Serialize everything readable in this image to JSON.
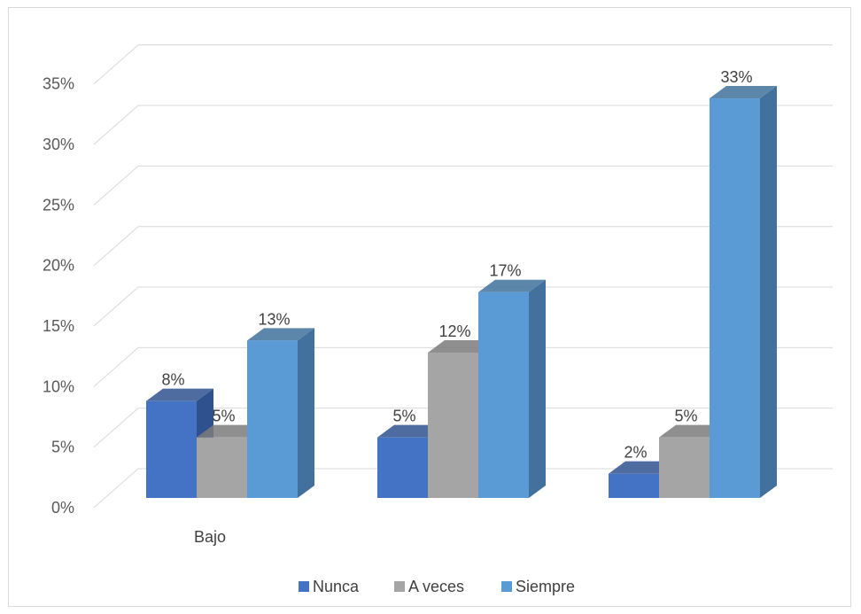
{
  "chart_data": {
    "type": "bar",
    "style": "3d-clustered-column",
    "categories": [
      "Bajo",
      "",
      ""
    ],
    "series": [
      {
        "name": "Nunca",
        "color": "#4472c4",
        "side_color": "#2f528f",
        "values": [
          8,
          5,
          2
        ]
      },
      {
        "name": "A veces",
        "color": "#a5a5a5",
        "side_color": "#7b7b7b",
        "values": [
          5,
          12,
          5
        ]
      },
      {
        "name": "Siempre",
        "color": "#5b9bd5",
        "side_color": "#41719c",
        "values": [
          13,
          17,
          33
        ]
      }
    ],
    "data_labels": [
      [
        "8%",
        "5%",
        "2%"
      ],
      [
        "5%",
        "12%",
        "5%"
      ],
      [
        "13%",
        "17%",
        "33%"
      ]
    ],
    "yticks": [
      "0%",
      "5%",
      "10%",
      "15%",
      "20%",
      "25%",
      "30%",
      "35%"
    ],
    "ylim": [
      0,
      35
    ],
    "grid": true,
    "legend_position": "bottom"
  }
}
